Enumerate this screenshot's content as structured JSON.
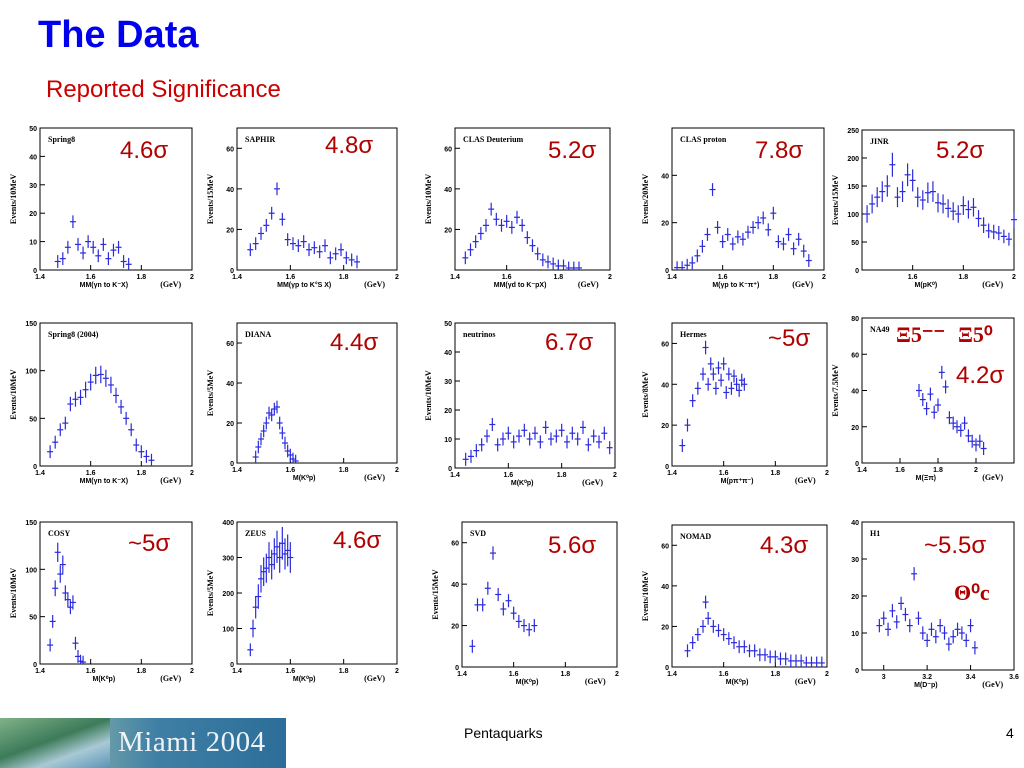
{
  "slide": {
    "title": "The Data",
    "subtitle": "Reported Significance",
    "footer_center": "Pentaquarks",
    "footer_page": "4",
    "logo_text": "Miami 2004",
    "colors": {
      "title": "#0000ee",
      "subtitle": "#cc0000",
      "significance": "#b00000",
      "data": "#2b2bdc"
    }
  },
  "chart_data": [
    {
      "id": "spring8",
      "type": "scatter",
      "label": "Spring8",
      "significance": "4.6σ",
      "ylabel": "Events/10MeV",
      "xlabel": "MM(γn to K⁻X)",
      "unit": "(GeV)",
      "xlim": [
        1.4,
        2.0
      ],
      "ylim": [
        0,
        50
      ],
      "xticks": [
        "1.4",
        "1.6",
        "1.8",
        "2"
      ],
      "yticks": [
        "0",
        "10",
        "20",
        "30",
        "40",
        "50"
      ],
      "x": [
        1.47,
        1.49,
        1.51,
        1.53,
        1.55,
        1.57,
        1.59,
        1.61,
        1.63,
        1.65,
        1.67,
        1.69,
        1.71,
        1.73,
        1.75
      ],
      "y": [
        3,
        4,
        8,
        17,
        9,
        6,
        10,
        8,
        5,
        9,
        4,
        7,
        8,
        3,
        2
      ]
    },
    {
      "id": "saphir",
      "type": "scatter",
      "label": "SAPHIR",
      "significance": "4.8σ",
      "ylabel": "Events/15MeV",
      "xlabel": "MM(γp to K°S X)",
      "unit": "(GeV)",
      "xlim": [
        1.4,
        2.0
      ],
      "ylim": [
        0,
        70
      ],
      "xticks": [
        "1.4",
        "1.6",
        "1.8",
        "2"
      ],
      "yticks": [
        "0",
        "20",
        "40",
        "60"
      ],
      "x": [
        1.45,
        1.47,
        1.49,
        1.51,
        1.53,
        1.55,
        1.57,
        1.59,
        1.61,
        1.63,
        1.65,
        1.67,
        1.69,
        1.71,
        1.73,
        1.75,
        1.77,
        1.79,
        1.81,
        1.83,
        1.85
      ],
      "y": [
        10,
        13,
        18,
        22,
        28,
        40,
        25,
        15,
        13,
        12,
        14,
        10,
        11,
        9,
        12,
        6,
        8,
        10,
        6,
        5,
        4
      ]
    },
    {
      "id": "clas_d",
      "type": "scatter",
      "label": "CLAS Deuterium",
      "significance": "5.2σ",
      "ylabel": "Events/10MeV",
      "xlabel": "MM(γd to K⁻pX)",
      "unit": "(GeV)",
      "xlim": [
        1.4,
        2.0
      ],
      "ylim": [
        0,
        70
      ],
      "xticks": [
        "1.4",
        "1.6",
        "1.8",
        "2"
      ],
      "yticks": [
        "20",
        "40",
        "60"
      ],
      "x": [
        1.44,
        1.46,
        1.48,
        1.5,
        1.52,
        1.54,
        1.56,
        1.58,
        1.6,
        1.62,
        1.64,
        1.66,
        1.68,
        1.7,
        1.72,
        1.74,
        1.76,
        1.78,
        1.8,
        1.82,
        1.84,
        1.86,
        1.88
      ],
      "y": [
        6,
        10,
        14,
        18,
        22,
        30,
        25,
        22,
        24,
        21,
        26,
        22,
        16,
        12,
        8,
        5,
        4,
        3,
        2,
        2,
        1,
        1,
        1
      ]
    },
    {
      "id": "clas_p",
      "type": "scatter",
      "label": "CLAS proton",
      "significance": "7.8σ",
      "ylabel": "Events/20MeV",
      "xlabel": "M(γp to K⁻π⁺)",
      "unit": "(GeV)",
      "xlim": [
        1.4,
        2.0
      ],
      "ylim": [
        0,
        60
      ],
      "xticks": [
        "1.4",
        "1.6",
        "1.8",
        "2"
      ],
      "yticks": [
        "0",
        "20",
        "40"
      ],
      "x": [
        1.42,
        1.44,
        1.46,
        1.48,
        1.5,
        1.52,
        1.54,
        1.56,
        1.58,
        1.6,
        1.62,
        1.64,
        1.66,
        1.68,
        1.7,
        1.72,
        1.74,
        1.76,
        1.78,
        1.8,
        1.82,
        1.84,
        1.86,
        1.88,
        1.9,
        1.92,
        1.94
      ],
      "y": [
        1,
        1,
        2,
        3,
        6,
        10,
        15,
        34,
        18,
        12,
        15,
        11,
        14,
        13,
        16,
        18,
        20,
        22,
        17,
        24,
        12,
        11,
        15,
        9,
        13,
        8,
        4
      ]
    },
    {
      "id": "jinr",
      "type": "scatter",
      "label": "JINR",
      "significance": "5.2σ",
      "ylabel": "Events/15MeV",
      "xlabel": "M(pK⁰)",
      "unit": "(GeV)",
      "xlim": [
        1.4,
        2.0
      ],
      "ylim": [
        0,
        250
      ],
      "xticks": [
        "1.6",
        "1.8",
        "2"
      ],
      "yticks": [
        "0",
        "50",
        "100",
        "150",
        "200",
        "250"
      ],
      "x": [
        1.42,
        1.44,
        1.46,
        1.48,
        1.5,
        1.52,
        1.54,
        1.56,
        1.58,
        1.6,
        1.62,
        1.64,
        1.66,
        1.68,
        1.7,
        1.72,
        1.74,
        1.76,
        1.78,
        1.8,
        1.82,
        1.84,
        1.86,
        1.88,
        1.9,
        1.92,
        1.94,
        1.96,
        1.98,
        2.0
      ],
      "y": [
        100,
        118,
        130,
        140,
        150,
        188,
        130,
        140,
        170,
        160,
        130,
        125,
        138,
        140,
        120,
        118,
        110,
        105,
        100,
        115,
        108,
        112,
        92,
        80,
        70,
        68,
        66,
        60,
        55,
        90
      ]
    },
    {
      "id": "spring8_2004",
      "type": "scatter",
      "label": "Spring8 (2004)",
      "significance": "",
      "ylabel": "Events/10MeV",
      "xlabel": "MM(γn to K⁻X)",
      "unit": "(GeV)",
      "xlim": [
        1.4,
        2.0
      ],
      "ylim": [
        0,
        150
      ],
      "xticks": [
        "1.4",
        "1.6",
        "1.8",
        "2"
      ],
      "yticks": [
        "0",
        "50",
        "100",
        "150"
      ],
      "x": [
        1.44,
        1.46,
        1.48,
        1.5,
        1.52,
        1.54,
        1.56,
        1.58,
        1.6,
        1.62,
        1.64,
        1.66,
        1.68,
        1.7,
        1.72,
        1.74,
        1.76,
        1.78,
        1.8,
        1.82,
        1.84
      ],
      "y": [
        15,
        25,
        38,
        45,
        65,
        70,
        72,
        80,
        88,
        95,
        96,
        92,
        85,
        74,
        62,
        50,
        38,
        22,
        15,
        10,
        6
      ]
    },
    {
      "id": "diana",
      "type": "scatter",
      "label": "DIANA",
      "significance": "4.4σ",
      "ylabel": "Events/5MeV",
      "xlabel": "M(K⁰p)",
      "unit": "(GeV)",
      "xlim": [
        1.4,
        2.0
      ],
      "ylim": [
        0,
        70
      ],
      "xticks": [
        "1.4",
        "1.6",
        "1.8",
        "2"
      ],
      "yticks": [
        "0",
        "20",
        "40",
        "60"
      ],
      "x": [
        1.47,
        1.48,
        1.49,
        1.5,
        1.51,
        1.52,
        1.53,
        1.54,
        1.55,
        1.56,
        1.57,
        1.58,
        1.59,
        1.6,
        1.61,
        1.62
      ],
      "y": [
        3,
        8,
        12,
        16,
        20,
        25,
        24,
        27,
        28,
        20,
        15,
        10,
        6,
        4,
        2,
        1
      ]
    },
    {
      "id": "neutrinos",
      "type": "scatter",
      "label": "neutrinos",
      "significance": "6.7σ",
      "ylabel": "Events/10MeV",
      "xlabel": "M(K⁰p)",
      "unit": "(GeV)",
      "xlim": [
        1.4,
        2.0
      ],
      "ylim": [
        0,
        50
      ],
      "xticks": [
        "1.4",
        "1.6",
        "1.8",
        "2"
      ],
      "yticks": [
        "0",
        "10",
        "20",
        "30",
        "40",
        "50"
      ],
      "x": [
        1.44,
        1.46,
        1.48,
        1.5,
        1.52,
        1.54,
        1.56,
        1.58,
        1.6,
        1.62,
        1.64,
        1.66,
        1.68,
        1.7,
        1.72,
        1.74,
        1.76,
        1.78,
        1.8,
        1.82,
        1.84,
        1.86,
        1.88,
        1.9,
        1.92,
        1.94,
        1.96,
        1.98
      ],
      "y": [
        3,
        4,
        6,
        8,
        11,
        15,
        8,
        10,
        12,
        9,
        11,
        13,
        10,
        12,
        9,
        14,
        10,
        11,
        13,
        9,
        12,
        10,
        14,
        8,
        11,
        9,
        12,
        7
      ]
    },
    {
      "id": "hermes",
      "type": "scatter",
      "label": "Hermes",
      "significance": "~5σ",
      "ylabel": "Events/8MeV",
      "xlabel": "M(pπ⁺π⁻)",
      "unit": "(GeV)",
      "xlim": [
        1.4,
        2.0
      ],
      "ylim": [
        0,
        70
      ],
      "xticks": [
        "1.4",
        "1.6",
        "1.8",
        "2"
      ],
      "yticks": [
        "0",
        "20",
        "40",
        "60"
      ],
      "x": [
        1.44,
        1.46,
        1.48,
        1.5,
        1.52,
        1.53,
        1.54,
        1.55,
        1.56,
        1.57,
        1.58,
        1.59,
        1.6,
        1.61,
        1.62,
        1.63,
        1.64,
        1.65,
        1.66,
        1.67,
        1.68
      ],
      "y": [
        10,
        20,
        32,
        38,
        45,
        58,
        40,
        50,
        45,
        38,
        48,
        42,
        50,
        36,
        45,
        38,
        44,
        40,
        37,
        42,
        40
      ]
    },
    {
      "id": "na49",
      "type": "scatter",
      "label": "NA49",
      "significance": "4.2σ",
      "ylabel": "Events/7.5MeV",
      "xlabel": "M(Ξπ)",
      "unit": "(GeV)",
      "xlim": [
        1.4,
        2.2
      ],
      "ylim": [
        0,
        80
      ],
      "xticks": [
        "1.4",
        "1.6",
        "1.8",
        "2"
      ],
      "yticks": [
        "0",
        "20",
        "40",
        "60",
        "80"
      ],
      "x": [
        1.7,
        1.72,
        1.74,
        1.76,
        1.78,
        1.8,
        1.82,
        1.84,
        1.86,
        1.88,
        1.9,
        1.92,
        1.94,
        1.96,
        1.98,
        2.0,
        2.02,
        2.04
      ],
      "y": [
        40,
        35,
        30,
        38,
        28,
        32,
        50,
        42,
        25,
        22,
        20,
        18,
        22,
        15,
        12,
        10,
        12,
        8
      ]
    },
    {
      "id": "cosy",
      "type": "scatter",
      "label": "COSY",
      "significance": "~5σ",
      "ylabel": "Events/10MeV",
      "xlabel": "M(K⁰p)",
      "unit": "(GeV)",
      "xlim": [
        1.4,
        2.0
      ],
      "ylim": [
        0,
        150
      ],
      "xticks": [
        "1.4",
        "1.6",
        "1.8",
        "2"
      ],
      "yticks": [
        "0",
        "50",
        "100",
        "150"
      ],
      "x": [
        1.44,
        1.45,
        1.46,
        1.47,
        1.48,
        1.49,
        1.5,
        1.51,
        1.52,
        1.53,
        1.54,
        1.55,
        1.56,
        1.57
      ],
      "y": [
        20,
        45,
        80,
        118,
        95,
        105,
        75,
        68,
        60,
        65,
        22,
        8,
        3,
        2
      ]
    },
    {
      "id": "zeus",
      "type": "scatter",
      "label": "ZEUS",
      "significance": "4.6σ",
      "ylabel": "Events/5MeV",
      "xlabel": "M(K⁰p)",
      "unit": "(GeV)",
      "xlim": [
        1.4,
        2.0
      ],
      "ylim": [
        0,
        400
      ],
      "xticks": [
        "1.4",
        "1.6",
        "1.8",
        "2"
      ],
      "yticks": [
        "0",
        "100",
        "200",
        "300",
        "400"
      ],
      "x": [
        1.45,
        1.46,
        1.47,
        1.48,
        1.49,
        1.5,
        1.51,
        1.52,
        1.53,
        1.54,
        1.55,
        1.56,
        1.57,
        1.58,
        1.59,
        1.6
      ],
      "y": [
        40,
        100,
        160,
        190,
        240,
        260,
        270,
        300,
        280,
        310,
        330,
        300,
        340,
        310,
        320,
        300
      ]
    },
    {
      "id": "svd",
      "type": "scatter",
      "label": "SVD",
      "significance": "5.6σ",
      "ylabel": "Events/15MeV",
      "xlabel": "M(K⁰p)",
      "unit": "(GeV)",
      "xlim": [
        1.4,
        2.0
      ],
      "ylim": [
        0,
        70
      ],
      "xticks": [
        "1.4",
        "1.6",
        "1.8",
        "2"
      ],
      "yticks": [
        "0",
        "20",
        "40",
        "60"
      ],
      "x": [
        1.44,
        1.46,
        1.48,
        1.5,
        1.52,
        1.54,
        1.56,
        1.58,
        1.6,
        1.62,
        1.64,
        1.66,
        1.68
      ],
      "y": [
        10,
        30,
        30,
        38,
        55,
        35,
        28,
        32,
        26,
        22,
        20,
        18,
        20
      ]
    },
    {
      "id": "nomad",
      "type": "scatter",
      "label": "NOMAD",
      "significance": "4.3σ",
      "ylabel": "Events/10MeV",
      "xlabel": "M(K⁰p)",
      "unit": "(GeV)",
      "xlim": [
        1.4,
        2.0
      ],
      "ylim": [
        0,
        70
      ],
      "xticks": [
        "1.4",
        "1.6",
        "1.8",
        "2"
      ],
      "yticks": [
        "0",
        "20",
        "40",
        "60"
      ],
      "x": [
        1.46,
        1.48,
        1.5,
        1.52,
        1.53,
        1.54,
        1.56,
        1.58,
        1.6,
        1.62,
        1.64,
        1.66,
        1.68,
        1.7,
        1.72,
        1.74,
        1.76,
        1.78,
        1.8,
        1.82,
        1.84,
        1.86,
        1.88,
        1.9,
        1.92,
        1.94,
        1.96,
        1.98
      ],
      "y": [
        8,
        12,
        16,
        20,
        32,
        24,
        20,
        18,
        16,
        14,
        12,
        10,
        10,
        8,
        8,
        6,
        6,
        5,
        5,
        4,
        4,
        3,
        3,
        3,
        2,
        2,
        2,
        2
      ]
    },
    {
      "id": "h1",
      "type": "scatter",
      "label": "H1",
      "significance": "~5.5σ",
      "ylabel": "",
      "xlabel": "M(D⁻p)",
      "unit": "(GeV)",
      "xlim": [
        2.9,
        3.6
      ],
      "ylim": [
        0,
        40
      ],
      "xticks": [
        "3",
        "3.2",
        "3.4",
        "3.6"
      ],
      "yticks": [
        "0",
        "10",
        "20",
        "30",
        "40"
      ],
      "x": [
        2.98,
        3.0,
        3.02,
        3.04,
        3.06,
        3.08,
        3.1,
        3.12,
        3.14,
        3.16,
        3.18,
        3.2,
        3.22,
        3.24,
        3.26,
        3.28,
        3.3,
        3.32,
        3.34,
        3.36,
        3.38,
        3.4,
        3.42
      ],
      "y": [
        12,
        14,
        11,
        16,
        13,
        18,
        15,
        12,
        26,
        14,
        10,
        8,
        11,
        9,
        12,
        10,
        7,
        9,
        11,
        10,
        8,
        12,
        6
      ]
    }
  ],
  "extras": {
    "na49_label_left": "Ξ5⁻⁻",
    "na49_label_right": "Ξ5⁰",
    "h1_label": "Θ⁰c"
  }
}
